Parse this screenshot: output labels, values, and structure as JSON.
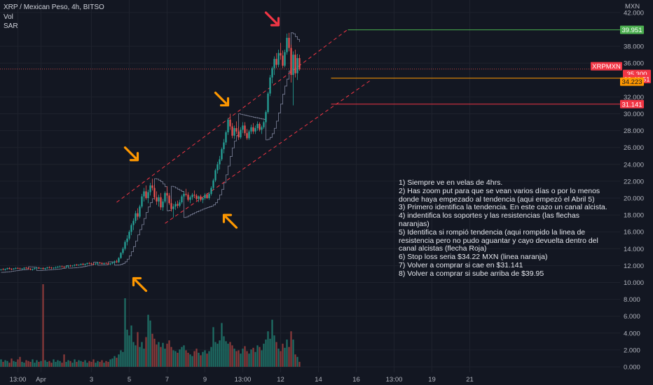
{
  "header": {
    "symbol_line": "XRP / Mexican Peso, 4h, BITSO",
    "indicator_vol": "Vol",
    "indicator_sar": "SAR"
  },
  "chart_data": {
    "type": "candlestick",
    "price_axis": {
      "currency_label": "MXN",
      "ylim": [
        0.0,
        42.0
      ],
      "ticks": [
        "42.000",
        "38.000",
        "36.000",
        "32.000",
        "30.000",
        "28.000",
        "26.000",
        "24.000",
        "22.000",
        "20.000",
        "18.000",
        "16.000",
        "14.000",
        "12.000",
        "10.000",
        "8.000",
        "6.000",
        "4.000",
        "2.000",
        "0.000"
      ],
      "tick_values": [
        42,
        38,
        36,
        32,
        30,
        28,
        26,
        24,
        22,
        20,
        18,
        16,
        14,
        12,
        10,
        8,
        6,
        4,
        2,
        0
      ]
    },
    "time_axis": {
      "ticks": [
        "13:00",
        "Apr",
        "3",
        "5",
        "7",
        "9",
        "13:00",
        "12",
        "14",
        "16",
        "13:00",
        "19",
        "21"
      ],
      "tick_index": [
        8,
        19,
        43,
        61,
        79,
        97,
        115,
        133,
        151,
        169,
        187,
        205,
        223
      ]
    },
    "price_labels": [
      {
        "text": "39.951",
        "value": 39.951,
        "color": "#4caf50",
        "line_start_index": 165
      },
      {
        "text": "XRPMXN",
        "value": 35.3,
        "color": "#f23645"
      },
      {
        "text": "35.300",
        "value": 35.3,
        "color": "#f23645"
      },
      {
        "text": "02:40:51",
        "value": 34.7,
        "color": "#f23645"
      },
      {
        "text": "34.223",
        "value": 34.223,
        "color": "#ff9800",
        "line_start_index": 157
      },
      {
        "text": "31.141",
        "value": 31.141,
        "color": "#f23645",
        "line_start_index": 157
      }
    ],
    "channel": {
      "upper": [
        {
          "index": 55,
          "value": 19.5
        },
        {
          "index": 165,
          "value": 40.0
        }
      ],
      "lower": [
        {
          "index": 78,
          "value": 17.0
        },
        {
          "index": 176,
          "value": 34.0
        }
      ]
    },
    "arrows": [
      {
        "index": 63,
        "value": 10.5,
        "direction": "up-left",
        "color": "#ff9800"
      },
      {
        "index": 65,
        "value": 24.5,
        "direction": "down-right",
        "color": "#ff9800"
      },
      {
        "index": 106,
        "value": 18.0,
        "direction": "up-left",
        "color": "#ff9800"
      },
      {
        "index": 108,
        "value": 31.0,
        "direction": "down-right",
        "color": "#ff9800"
      },
      {
        "index": 132,
        "value": 40.5,
        "direction": "down-right",
        "color": "#f23645"
      }
    ],
    "ohlc": [
      [
        11.5,
        11.6,
        11.4,
        11.55
      ],
      [
        11.55,
        11.7,
        11.45,
        11.5
      ],
      [
        11.5,
        11.65,
        11.4,
        11.6
      ],
      [
        11.6,
        11.75,
        11.5,
        11.7
      ],
      [
        11.7,
        11.8,
        11.55,
        11.6
      ],
      [
        11.6,
        11.7,
        11.45,
        11.55
      ],
      [
        11.55,
        11.7,
        11.5,
        11.65
      ],
      [
        11.65,
        11.8,
        11.55,
        11.7
      ],
      [
        11.7,
        11.8,
        11.6,
        11.65
      ],
      [
        11.65,
        11.75,
        11.55,
        11.6
      ],
      [
        11.6,
        11.7,
        11.5,
        11.65
      ],
      [
        11.65,
        11.8,
        11.55,
        11.75
      ],
      [
        11.75,
        11.85,
        11.6,
        11.7
      ],
      [
        11.7,
        11.8,
        11.55,
        11.6
      ],
      [
        11.6,
        11.7,
        11.45,
        11.5
      ],
      [
        11.5,
        11.65,
        11.4,
        11.6
      ],
      [
        11.6,
        11.75,
        11.5,
        11.7
      ],
      [
        11.7,
        11.8,
        11.6,
        11.75
      ],
      [
        11.75,
        11.85,
        11.6,
        11.65
      ],
      [
        11.65,
        11.75,
        11.55,
        11.7
      ],
      [
        11.7,
        11.8,
        11.55,
        11.6
      ],
      [
        11.6,
        11.75,
        11.5,
        11.7
      ],
      [
        11.7,
        11.85,
        11.6,
        11.8
      ],
      [
        11.8,
        11.9,
        11.65,
        11.75
      ],
      [
        11.75,
        11.85,
        11.6,
        11.7
      ],
      [
        11.7,
        11.8,
        11.6,
        11.75
      ],
      [
        11.75,
        11.9,
        11.65,
        11.8
      ],
      [
        11.8,
        11.95,
        11.7,
        11.85
      ],
      [
        11.85,
        12.0,
        11.75,
        11.9
      ],
      [
        11.9,
        12.0,
        11.8,
        11.85
      ],
      [
        11.85,
        11.95,
        11.7,
        11.8
      ],
      [
        11.8,
        11.95,
        11.7,
        11.9
      ],
      [
        11.9,
        12.05,
        11.8,
        12.0
      ],
      [
        12.0,
        12.1,
        11.85,
        11.95
      ],
      [
        11.95,
        12.05,
        11.85,
        12.0
      ],
      [
        12.0,
        12.15,
        11.9,
        12.1
      ],
      [
        12.1,
        12.2,
        11.95,
        12.05
      ],
      [
        12.05,
        12.15,
        11.95,
        12.1
      ],
      [
        12.1,
        12.25,
        12.0,
        12.2
      ],
      [
        12.2,
        12.3,
        12.05,
        12.1
      ],
      [
        12.1,
        12.25,
        12.0,
        12.2
      ],
      [
        12.2,
        12.35,
        12.1,
        12.3
      ],
      [
        12.3,
        12.4,
        12.15,
        12.25
      ],
      [
        12.25,
        12.35,
        12.1,
        12.2
      ],
      [
        12.2,
        12.3,
        12.05,
        12.15
      ],
      [
        12.15,
        12.3,
        12.05,
        12.25
      ],
      [
        12.25,
        12.4,
        12.15,
        12.35
      ],
      [
        12.35,
        12.45,
        12.2,
        12.3
      ],
      [
        12.3,
        12.4,
        12.15,
        12.2
      ],
      [
        12.2,
        12.35,
        12.1,
        12.3
      ],
      [
        12.3,
        12.4,
        12.2,
        12.25
      ],
      [
        12.25,
        12.35,
        12.1,
        12.15
      ],
      [
        12.15,
        12.3,
        12.05,
        12.25
      ],
      [
        12.25,
        12.4,
        12.15,
        12.35
      ],
      [
        12.35,
        12.6,
        12.25,
        12.5
      ],
      [
        12.5,
        12.7,
        12.3,
        12.4
      ],
      [
        12.4,
        13.0,
        12.3,
        12.9
      ],
      [
        12.9,
        13.6,
        12.8,
        13.5
      ],
      [
        13.5,
        14.2,
        13.3,
        14.0
      ],
      [
        14.0,
        15.0,
        13.8,
        14.8
      ],
      [
        14.8,
        15.6,
        14.4,
        15.2
      ],
      [
        15.2,
        16.2,
        15.0,
        16.0
      ],
      [
        16.0,
        17.0,
        15.6,
        16.8
      ],
      [
        16.8,
        17.6,
        16.2,
        17.3
      ],
      [
        17.3,
        18.5,
        17.0,
        18.2
      ],
      [
        18.2,
        18.8,
        17.4,
        17.8
      ],
      [
        17.8,
        19.2,
        17.6,
        19.0
      ],
      [
        19.0,
        20.5,
        18.8,
        20.2
      ],
      [
        20.2,
        21.2,
        19.6,
        20.8
      ],
      [
        20.8,
        21.5,
        19.8,
        20.0
      ],
      [
        20.0,
        21.0,
        19.4,
        20.7
      ],
      [
        20.7,
        21.8,
        20.3,
        21.5
      ],
      [
        21.5,
        22.3,
        20.9,
        21.2
      ],
      [
        21.2,
        21.6,
        19.8,
        20.1
      ],
      [
        20.1,
        20.8,
        19.2,
        19.6
      ],
      [
        19.6,
        20.4,
        19.0,
        20.1
      ],
      [
        20.1,
        20.6,
        18.6,
        18.9
      ],
      [
        18.9,
        19.9,
        18.5,
        19.6
      ],
      [
        19.6,
        20.8,
        19.4,
        20.6
      ],
      [
        20.6,
        21.4,
        20.0,
        20.3
      ],
      [
        20.3,
        20.6,
        19.2,
        19.4
      ],
      [
        19.4,
        19.9,
        18.4,
        18.7
      ],
      [
        18.7,
        19.3,
        17.7,
        19.0
      ],
      [
        19.0,
        19.6,
        18.6,
        19.3
      ],
      [
        19.3,
        19.7,
        18.8,
        19.1
      ],
      [
        19.1,
        19.8,
        18.9,
        19.5
      ],
      [
        19.5,
        20.4,
        19.3,
        20.2
      ],
      [
        20.2,
        20.8,
        19.9,
        20.5
      ],
      [
        20.5,
        21.1,
        20.2,
        20.4
      ],
      [
        20.4,
        20.7,
        19.6,
        19.8
      ],
      [
        19.8,
        20.3,
        19.4,
        20.1
      ],
      [
        20.1,
        20.6,
        19.8,
        20.4
      ],
      [
        20.4,
        20.9,
        20.0,
        20.3
      ],
      [
        20.3,
        20.5,
        19.7,
        19.9
      ],
      [
        19.9,
        20.3,
        19.5,
        20.2
      ],
      [
        20.2,
        20.4,
        19.6,
        19.8
      ],
      [
        19.8,
        20.1,
        19.4,
        20.0
      ],
      [
        20.0,
        20.6,
        19.8,
        20.4
      ],
      [
        20.4,
        20.6,
        19.9,
        20.0
      ],
      [
        20.0,
        20.7,
        19.8,
        20.5
      ],
      [
        20.5,
        21.4,
        20.3,
        21.2
      ],
      [
        21.2,
        22.3,
        21.0,
        22.1
      ],
      [
        22.1,
        23.5,
        21.9,
        23.3
      ],
      [
        23.3,
        24.3,
        22.9,
        24.0
      ],
      [
        24.0,
        25.0,
        23.4,
        24.6
      ],
      [
        24.6,
        26.0,
        24.4,
        25.8
      ],
      [
        25.8,
        27.0,
        25.3,
        26.6
      ],
      [
        26.6,
        28.0,
        26.3,
        27.8
      ],
      [
        27.8,
        29.5,
        27.5,
        29.3
      ],
      [
        29.3,
        30.0,
        28.1,
        28.5
      ],
      [
        28.5,
        28.9,
        27.1,
        27.4
      ],
      [
        27.4,
        28.6,
        27.0,
        28.3
      ],
      [
        28.3,
        29.1,
        27.6,
        27.9
      ],
      [
        27.9,
        28.5,
        26.9,
        27.2
      ],
      [
        27.2,
        28.4,
        27.0,
        28.1
      ],
      [
        28.1,
        29.0,
        27.7,
        28.6
      ],
      [
        28.6,
        29.0,
        27.4,
        27.7
      ],
      [
        27.7,
        28.2,
        26.9,
        27.1
      ],
      [
        27.1,
        28.1,
        26.9,
        27.9
      ],
      [
        27.9,
        28.7,
        27.6,
        28.4
      ],
      [
        28.4,
        28.9,
        27.6,
        27.9
      ],
      [
        27.9,
        28.6,
        27.6,
        28.3
      ],
      [
        28.3,
        29.1,
        28.0,
        28.8
      ],
      [
        28.8,
        29.0,
        27.9,
        28.1
      ],
      [
        28.1,
        28.6,
        27.6,
        28.4
      ],
      [
        28.4,
        29.2,
        28.2,
        29.0
      ],
      [
        29.0,
        30.4,
        28.8,
        30.2
      ],
      [
        30.2,
        32.6,
        30.0,
        32.4
      ],
      [
        32.4,
        34.6,
        32.1,
        34.3
      ],
      [
        34.3,
        35.6,
        33.6,
        35.4
      ],
      [
        35.4,
        36.8,
        34.6,
        36.5
      ],
      [
        36.5,
        37.2,
        35.4,
        35.8
      ],
      [
        35.8,
        37.6,
        35.5,
        37.2
      ],
      [
        37.2,
        38.4,
        36.4,
        36.9
      ],
      [
        36.9,
        37.5,
        35.4,
        35.7
      ],
      [
        35.7,
        37.6,
        35.5,
        37.3
      ],
      [
        37.3,
        39.5,
        37.0,
        39.0
      ],
      [
        39.0,
        39.6,
        37.4,
        37.8
      ],
      [
        37.8,
        38.2,
        33.7,
        34.6
      ],
      [
        34.6,
        37.4,
        31.0,
        37.0
      ],
      [
        37.0,
        37.6,
        34.3,
        34.8
      ],
      [
        34.8,
        37.1,
        34.0,
        36.6
      ],
      [
        36.6,
        37.0,
        35.1,
        35.3
      ]
    ],
    "volume": [
      0.9,
      0.6,
      0.8,
      0.7,
      0.5,
      1.0,
      0.7,
      0.6,
      0.9,
      1.2,
      0.6,
      0.5,
      0.8,
      0.7,
      0.6,
      0.9,
      0.5,
      0.8,
      0.6,
      0.7,
      10.0,
      0.8,
      0.6,
      0.7,
      0.5,
      0.9,
      0.6,
      0.8,
      0.7,
      0.5,
      1.5,
      0.6,
      0.8,
      0.7,
      0.5,
      0.9,
      0.6,
      0.8,
      0.7,
      0.6,
      0.8,
      0.5,
      0.7,
      0.6,
      0.9,
      0.5,
      0.7,
      0.6,
      0.8,
      0.5,
      0.7,
      0.6,
      0.9,
      1.0,
      1.3,
      1.1,
      1.5,
      2.0,
      1.8,
      8.3,
      4.5,
      3.8,
      5.0,
      3.0,
      2.6,
      4.2,
      2.4,
      3.0,
      2.2,
      3.6,
      6.3,
      5.6,
      4.0,
      3.4,
      2.7,
      3.0,
      2.4,
      2.9,
      2.2,
      2.8,
      3.2,
      2.4,
      2.0,
      1.9,
      1.7,
      2.1,
      2.4,
      2.6,
      2.0,
      1.7,
      1.5,
      1.3,
      1.9,
      2.2,
      1.7,
      1.4,
      1.8,
      2.0,
      1.6,
      1.9,
      2.4,
      4.8,
      3.0,
      2.8,
      3.2,
      5.3,
      3.7,
      3.1,
      2.8,
      3.0,
      2.6,
      2.2,
      1.9,
      2.0,
      1.6,
      2.2,
      2.5,
      1.9,
      1.6,
      2.1,
      2.3,
      1.8,
      2.6,
      2.4,
      2.0,
      2.8,
      3.3,
      4.3,
      3.4,
      5.7,
      3.8,
      3.0,
      2.2,
      1.9,
      2.8,
      2.3,
      3.3,
      2.4,
      4.3,
      3.3,
      1.5,
      1.2,
      0.6
    ]
  },
  "notes": [
    "1) Siempre ve en velas de 4hrs.",
    "2) Has zoom put para que se vean varios días o por lo menos donde haya empezado al tendencia (aqui empezó el Abril 5)",
    "3) Primero identifica la tendencia. En este cazo un canal alcista.",
    "4) indentifica los soportes y las resistencias (las flechas naranjas)",
    "5) Identifica si rompió tendencia (aqui rompido la linea de resistencia pero no pudo aguantar y cayo devuelta dentro del canal alcistas (flecha Roja)",
    "6) Stop loss seria $34.22 MXN (linea naranja)",
    "7) Volver a comprar si cae en $31.141",
    "8) Volver a comprar si sube arriba de $39.95"
  ],
  "colors": {
    "background": "#131722",
    "bull": "#26a69a",
    "bear": "#ef5350",
    "bull_volume": "#1e6f66",
    "bear_volume": "#8b3a3b",
    "channel": "#f23645",
    "sar": "#8a8fa8",
    "text": "#d1d4dc",
    "axis_text": "#b2b5be",
    "grid": "#1e222d",
    "support_orange": "#ff9800",
    "resistance_red": "#f23645",
    "target_green": "#4caf50"
  }
}
